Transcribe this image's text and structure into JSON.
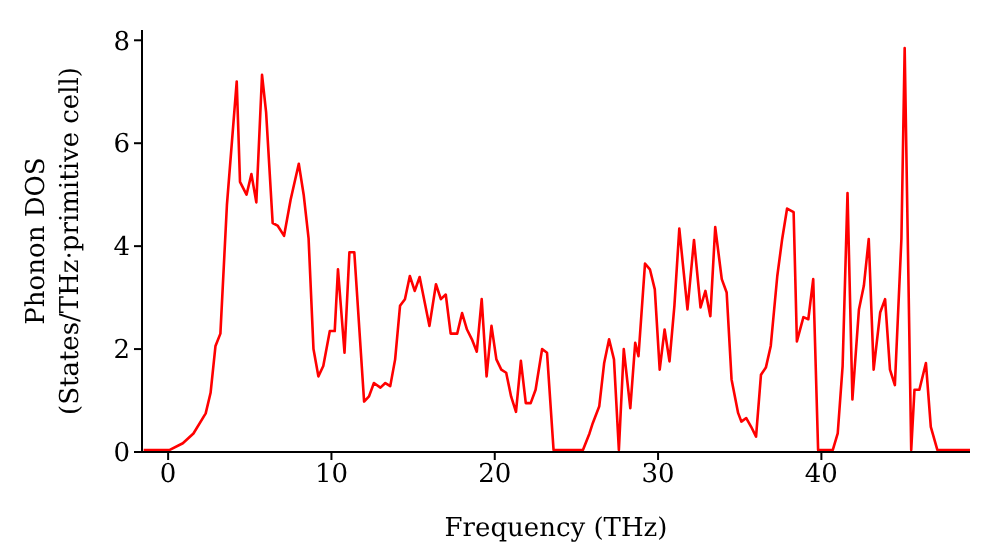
{
  "chart_data": {
    "type": "line",
    "xlabel": "Frequency (THz)",
    "ylabel": "Phonon DOS\n(States/THz·primitive cell)",
    "x": [
      -1.5,
      0.1,
      0.9,
      1.55,
      2.3,
      2.6,
      2.9,
      3.2,
      3.6,
      4.2,
      4.4,
      4.8,
      5.1,
      5.4,
      5.75,
      6.0,
      6.4,
      6.7,
      7.1,
      7.5,
      8.0,
      8.3,
      8.6,
      8.9,
      9.2,
      9.5,
      9.9,
      10.2,
      10.4,
      10.8,
      11.1,
      11.4,
      12.0,
      12.3,
      12.6,
      13.0,
      13.3,
      13.6,
      13.9,
      14.2,
      14.5,
      14.8,
      15.1,
      15.4,
      16.0,
      16.4,
      16.7,
      17.0,
      17.3,
      17.7,
      18.0,
      18.3,
      18.6,
      18.9,
      19.2,
      19.5,
      19.8,
      20.1,
      20.4,
      20.7,
      21.0,
      21.3,
      21.6,
      21.9,
      22.2,
      22.5,
      22.9,
      23.2,
      23.6,
      25.4,
      25.8,
      26.0,
      26.4,
      26.7,
      27.0,
      27.3,
      27.6,
      27.9,
      28.3,
      28.6,
      28.8,
      29.2,
      29.5,
      29.8,
      30.1,
      30.4,
      30.7,
      31.0,
      31.3,
      31.8,
      32.2,
      32.6,
      32.9,
      33.2,
      33.5,
      33.9,
      34.2,
      34.5,
      34.9,
      35.1,
      35.4,
      35.7,
      36.0,
      36.3,
      36.6,
      36.9,
      37.3,
      37.6,
      37.9,
      38.3,
      38.5,
      38.9,
      39.2,
      39.5,
      39.8,
      40.7,
      41.0,
      41.3,
      41.6,
      41.9,
      42.3,
      42.6,
      42.9,
      43.2,
      43.6,
      43.9,
      44.2,
      44.5,
      44.9,
      45.1,
      45.5,
      45.7,
      46.0,
      46.4,
      46.7,
      47.1,
      49.1
    ],
    "series": [
      {
        "color": "#ff0000",
        "values": [
          0.04,
          0.04,
          0.17,
          0.36,
          0.75,
          1.15,
          2.06,
          2.3,
          4.8,
          7.2,
          5.25,
          5.0,
          5.4,
          4.85,
          7.33,
          6.6,
          4.45,
          4.4,
          4.2,
          4.9,
          5.6,
          5.0,
          4.15,
          2.0,
          1.47,
          1.67,
          2.35,
          2.35,
          3.55,
          1.93,
          3.88,
          3.88,
          0.98,
          1.08,
          1.34,
          1.25,
          1.34,
          1.28,
          1.8,
          2.84,
          2.97,
          3.42,
          3.13,
          3.4,
          2.45,
          3.26,
          2.97,
          3.06,
          2.3,
          2.3,
          2.7,
          2.38,
          2.19,
          1.95,
          2.97,
          1.47,
          2.45,
          1.8,
          1.6,
          1.54,
          1.08,
          0.78,
          1.77,
          0.95,
          0.95,
          1.21,
          2.0,
          1.93,
          0.04,
          0.04,
          0.36,
          0.56,
          0.89,
          1.73,
          2.19,
          1.8,
          0.04,
          2.0,
          0.85,
          2.12,
          1.86,
          3.66,
          3.55,
          3.16,
          1.6,
          2.38,
          1.76,
          2.84,
          4.34,
          2.77,
          4.12,
          2.81,
          3.13,
          2.64,
          4.37,
          3.36,
          3.1,
          1.41,
          0.76,
          0.59,
          0.66,
          0.49,
          0.3,
          1.5,
          1.64,
          2.06,
          3.42,
          4.14,
          4.73,
          4.66,
          2.15,
          2.62,
          2.58,
          3.36,
          0.04,
          0.04,
          0.36,
          1.67,
          5.03,
          1.02,
          2.77,
          3.23,
          4.14,
          1.6,
          2.71,
          2.97,
          1.6,
          1.3,
          4.14,
          7.85,
          0.04,
          1.21,
          1.21,
          1.73,
          0.49,
          0.04,
          0.04
        ]
      }
    ],
    "xlim": [
      -1.6,
      49.1
    ],
    "xticks": [
      0,
      10,
      20,
      30,
      40
    ],
    "ylim": [
      0,
      8.2
    ],
    "yticks": [
      0,
      2,
      4,
      6,
      8
    ],
    "grid": false,
    "legend": false,
    "marker": "none",
    "line_style": "solid"
  }
}
